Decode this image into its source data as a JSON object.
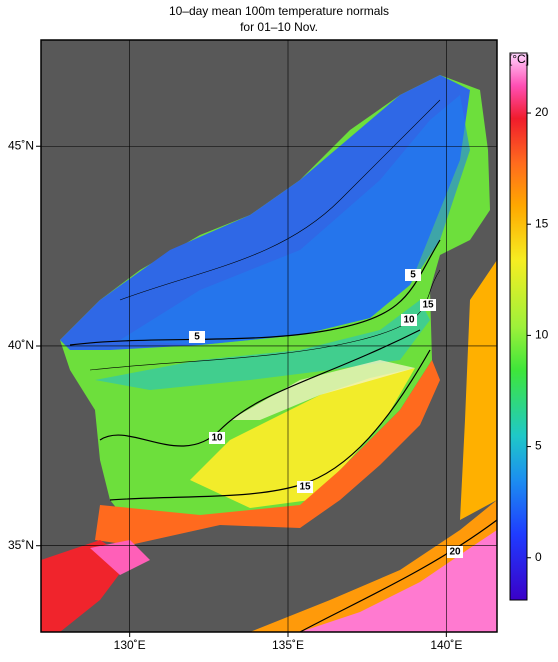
{
  "header": {
    "title": [
      "10–day mean 100m temperature normals",
      "for 01–10 Nov."
    ]
  },
  "map": {
    "lonlim": [
      127.2,
      141.6
    ],
    "latlim": [
      32.84,
      47.66
    ],
    "lonticks": [
      {
        "value": 130,
        "label": "130˚E"
      },
      {
        "value": 135,
        "label": "135˚E"
      },
      {
        "value": 140,
        "label": "140˚E"
      }
    ],
    "latticks": [
      {
        "value": 45,
        "label": "45˚N"
      },
      {
        "value": 40,
        "label": "40˚N"
      },
      {
        "value": 35,
        "label": "35˚N"
      }
    ],
    "contour_labels": [
      5,
      5,
      10,
      10,
      15,
      15,
      20
    ]
  },
  "colorbar": {
    "label": "[°C]",
    "lim": [
      -1.9,
      22.7
    ],
    "ticks": [
      0,
      5,
      10,
      15,
      20
    ]
  }
}
